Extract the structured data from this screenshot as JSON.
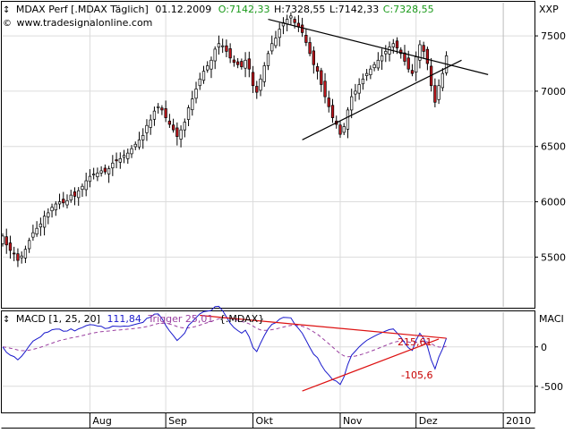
{
  "header": {
    "arrow": "↕",
    "instrument": "MDAX Perf [.MDAX  Täglich]",
    "date": "01.12.2009",
    "open": "O:7142,33",
    "high": "H:7328,55",
    "low": "L:7142,33",
    "close": "C:7328,55",
    "website": "www.tradesignalonline.com",
    "price_axis_label": "XXP"
  },
  "macd_header": {
    "arrow": "↕",
    "label": "MACD [1, 25, 20]",
    "macd_value": "111,84",
    "trigger_label": "Trigger 25,01",
    "suffix": "{.MDAX}",
    "axis_label": "MACI"
  },
  "colors": {
    "background": "#ffffff",
    "frame": "#000000",
    "grid": "#dcdcdc",
    "candle_up": "#ffffff",
    "candle_down": "#c0161c",
    "candle_outline": "#000000",
    "macd_line": "#1a1acc",
    "trigger_line": "#9a3fa0",
    "trendline_price": "#000000",
    "trendline_macd": "#dd1111",
    "header_close": "#1a9a1a",
    "header_text": "#000000",
    "annotation": "#c80000"
  },
  "chart_data": [
    {
      "type": "candlestick",
      "title": "MDAX Perf [.MDAX Täglich]",
      "x_labels": [
        "Aug",
        "Sep",
        "Okt",
        "Nov",
        "Dez",
        "2010"
      ],
      "x_index_range": [
        0,
        140
      ],
      "month_tick_index": [
        23,
        43,
        66,
        89,
        109,
        132
      ],
      "ylim": [
        5050,
        7800
      ],
      "y_ticks": [
        5500,
        6000,
        6500,
        7000,
        7500
      ],
      "grid": true,
      "closes": [
        5690,
        5610,
        5560,
        5530,
        5470,
        5510,
        5570,
        5650,
        5720,
        5760,
        5800,
        5870,
        5900,
        5950,
        5980,
        6000,
        5990,
        6010,
        6060,
        6050,
        6100,
        6140,
        6190,
        6230,
        6250,
        6260,
        6280,
        6270,
        6300,
        6350,
        6370,
        6390,
        6420,
        6440,
        6480,
        6520,
        6560,
        6600,
        6690,
        6740,
        6820,
        6860,
        6830,
        6760,
        6700,
        6650,
        6590,
        6650,
        6720,
        6850,
        6930,
        7020,
        7110,
        7180,
        7230,
        7280,
        7380,
        7430,
        7410,
        7360,
        7300,
        7260,
        7240,
        7220,
        7280,
        7200,
        7050,
        6990,
        7110,
        7230,
        7340,
        7430,
        7480,
        7560,
        7620,
        7650,
        7680,
        7620,
        7580,
        7530,
        7440,
        7340,
        7240,
        7180,
        7060,
        6950,
        6860,
        6760,
        6700,
        6610,
        6680,
        6830,
        6950,
        7000,
        7060,
        7110,
        7160,
        7200,
        7240,
        7280,
        7320,
        7360,
        7400,
        7430,
        7390,
        7340,
        7270,
        7200,
        7160,
        7310,
        7420,
        7360,
        7250,
        7050,
        6900,
        7050,
        7160,
        7320
      ]
    },
    {
      "type": "line",
      "title": "MACD [1, 25, 20]",
      "series": [
        {
          "name": "MACD",
          "last_value": 111.84
        },
        {
          "name": "Trigger",
          "last_value": 25.01
        }
      ],
      "ylim": [
        -820,
        440
      ],
      "y_ticks": [
        -500,
        0
      ],
      "annotations": [
        "215,61",
        "-105,6"
      ],
      "grid": true
    }
  ]
}
